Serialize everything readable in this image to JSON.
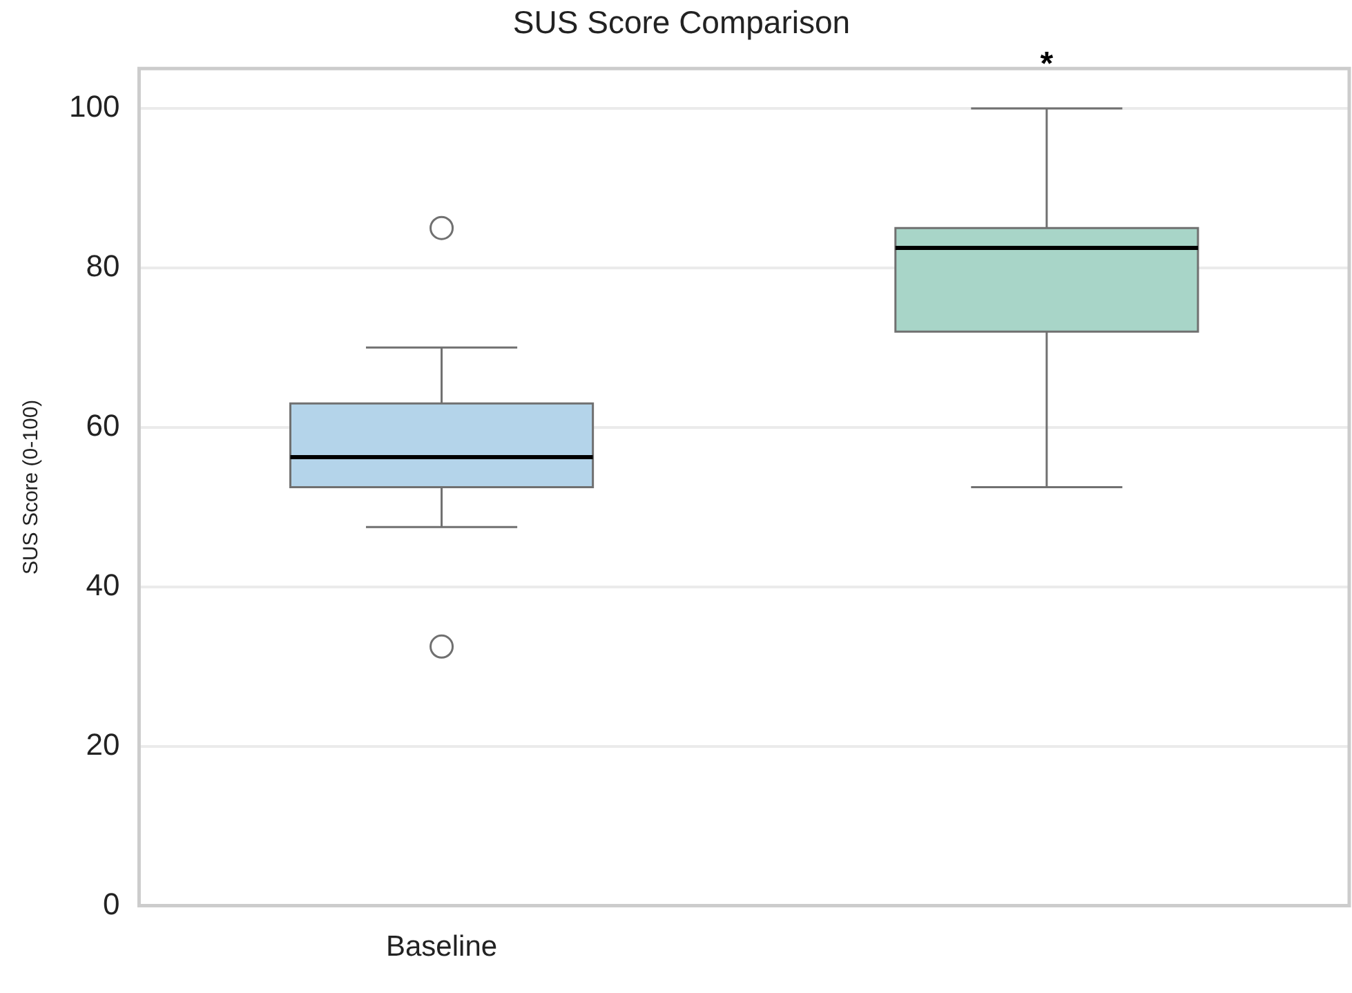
{
  "chart_data": {
    "type": "box",
    "title": "SUS Score Comparison",
    "ylabel": "SUS Score (0-100)",
    "categories": [
      "Baseline",
      null
    ],
    "colors": [
      "#b4d4ea",
      "#a8d5c8"
    ],
    "boxes": [
      {
        "low": 47.5,
        "q1": 52.5,
        "median": 56.25,
        "q3": 63,
        "high": 70,
        "outliers": [
          85,
          32.5
        ]
      },
      {
        "low": 52.5,
        "q1": 72,
        "median": 82.5,
        "q3": 85,
        "high": 100
      }
    ],
    "ylim": [
      0,
      105
    ],
    "yticks": [
      0,
      20,
      40,
      60,
      80,
      100
    ],
    "grid": "y",
    "legend": false,
    "annotations": [
      "*"
    ]
  }
}
